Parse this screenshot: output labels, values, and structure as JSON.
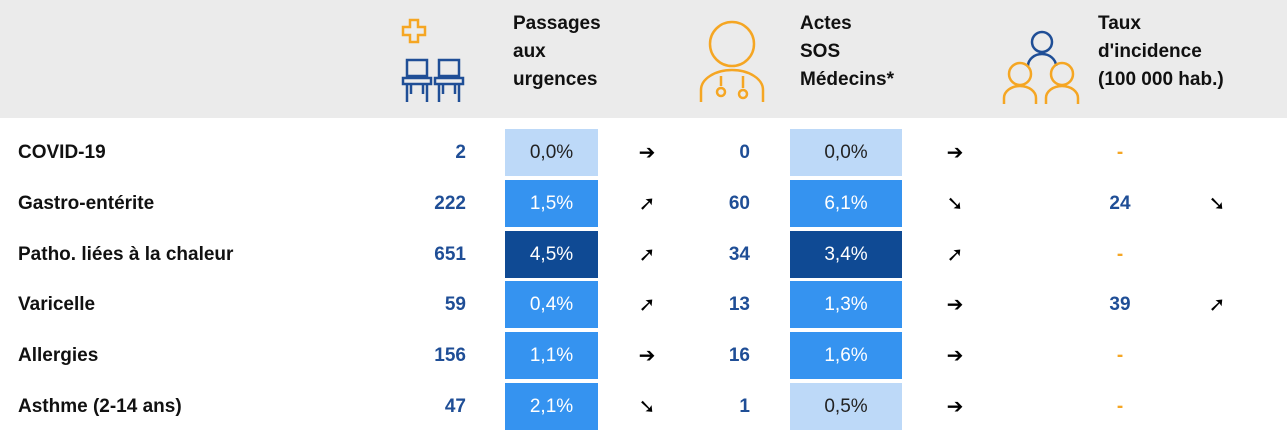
{
  "header": {
    "columns": [
      {
        "lines": [
          "Passages",
          "aux",
          "urgences"
        ]
      },
      {
        "lines": [
          "Actes",
          "SOS",
          "Médecins*"
        ]
      },
      {
        "lines": [
          "Taux",
          "d'incidence",
          "(100 000 hab.)"
        ]
      }
    ]
  },
  "table": {
    "rows": [
      {
        "name": "COVID-19",
        "urgences": {
          "count": 2,
          "pct": "0,0%",
          "color": "#bdd9f8",
          "trend": "➔"
        },
        "sos": {
          "count": 0,
          "pct": "0,0%",
          "color": "#bdd9f8",
          "trend": "➔"
        },
        "incidence": {
          "value": "-"
        }
      },
      {
        "name": "Gastro-entérite",
        "urgences": {
          "count": 222,
          "pct": "1,5%",
          "color": "#3593f0",
          "trend": "➚"
        },
        "sos": {
          "count": 60,
          "pct": "6,1%",
          "color": "#3593f0",
          "trend": "➘"
        },
        "incidence": {
          "value": 24,
          "trend": "➘"
        }
      },
      {
        "name": "Patho. liées à la chaleur",
        "urgences": {
          "count": 651,
          "pct": "4,5%",
          "color": "#0f4a94",
          "trend": "➚"
        },
        "sos": {
          "count": 34,
          "pct": "3,4%",
          "color": "#0f4a94",
          "trend": "➚"
        },
        "incidence": {
          "value": "-"
        }
      },
      {
        "name": "Varicelle",
        "urgences": {
          "count": 59,
          "pct": "0,4%",
          "color": "#3593f0",
          "trend": "➚"
        },
        "sos": {
          "count": 13,
          "pct": "1,3%",
          "color": "#3593f0",
          "trend": "➔"
        },
        "incidence": {
          "value": 39,
          "trend": "➚"
        }
      },
      {
        "name": "Allergies",
        "urgences": {
          "count": 156,
          "pct": "1,1%",
          "color": "#3593f0",
          "trend": "➔"
        },
        "sos": {
          "count": 16,
          "pct": "1,6%",
          "color": "#3593f0",
          "trend": "➔"
        },
        "incidence": {
          "value": "-"
        }
      },
      {
        "name": "Asthme (2-14 ans)",
        "urgences": {
          "count": 47,
          "pct": "2,1%",
          "color": "#3593f0",
          "trend": "➘"
        },
        "sos": {
          "count": 1,
          "pct": "0,5%",
          "color": "#bdd9f8",
          "trend": "➔"
        },
        "incidence": {
          "value": "-"
        }
      }
    ]
  }
}
